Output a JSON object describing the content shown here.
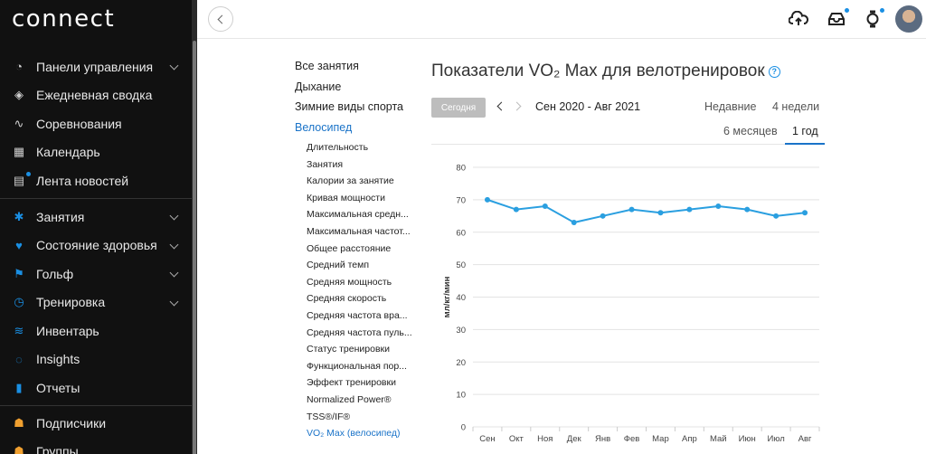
{
  "app": {
    "logo": "connect"
  },
  "sidebar": {
    "items": [
      {
        "label": "Панели управления",
        "icon": "dashboard-icon",
        "chevron": true
      },
      {
        "label": "Ежедневная сводка",
        "icon": "layers-icon",
        "chevron": false
      },
      {
        "label": "Соревнования",
        "icon": "pulse-icon",
        "chevron": false
      },
      {
        "label": "Календарь",
        "icon": "calendar-icon",
        "chevron": false
      },
      {
        "label": "Лента новостей",
        "icon": "newsfeed-icon",
        "chevron": false
      }
    ],
    "items2": [
      {
        "label": "Занятия",
        "icon": "activity-icon",
        "chevron": true
      },
      {
        "label": "Состояние здоровья",
        "icon": "heart-icon",
        "chevron": true
      },
      {
        "label": "Гольф",
        "icon": "golf-icon",
        "chevron": true
      },
      {
        "label": "Тренировка",
        "icon": "stopwatch-icon",
        "chevron": true
      },
      {
        "label": "Инвентарь",
        "icon": "shoe-icon",
        "chevron": false
      },
      {
        "label": "Insights",
        "icon": "lightbulb-icon",
        "chevron": false
      },
      {
        "label": "Отчеты",
        "icon": "bar-chart-icon",
        "chevron": false
      }
    ],
    "items3": [
      {
        "label": "Подписчики",
        "icon": "followers-icon",
        "chevron": false
      },
      {
        "label": "Группы",
        "icon": "groups-icon",
        "chevron": false
      }
    ]
  },
  "topbar": {
    "icons": [
      "upload-cloud-icon",
      "inbox-icon",
      "watch-icon"
    ],
    "accent": "#1a8fe3"
  },
  "subnav": {
    "categories": [
      "Все занятия",
      "Дыхание",
      "Зимние виды спорта",
      "Велосипед"
    ],
    "active_category": "Велосипед",
    "subitems": [
      "Длительность",
      "Занятия",
      "Калории за занятие",
      "Кривая мощности",
      "Максимальная средн...",
      "Максимальная частот...",
      "Общее расстояние",
      "Средний темп",
      "Средняя мощность",
      "Средняя скорость",
      "Средняя частота вра...",
      "Средняя частота пуль...",
      "Статус тренировки",
      "Функциональная пор...",
      "Эффект тренировки",
      "Normalized Power®",
      "TSS®/IF®",
      "VO₂ Max (велосипед)"
    ],
    "active_subitem": "VO₂ Max (велосипед)"
  },
  "content": {
    "title": "Показатели VO₂ Max для велотренировок",
    "today_button": "Сегодня",
    "date_range": "Сен 2020 - Авг 2021",
    "periods": {
      "recent": "Недавние",
      "four_weeks": "4 недели",
      "six_months": "6 месяцев",
      "one_year": "1 год"
    },
    "active_period": "1 год"
  },
  "chart_data": {
    "type": "line",
    "title": "Показатели VO₂ Max для велотренировок",
    "xlabel": "",
    "ylabel": "мл/кг/мин",
    "categories": [
      "Сен",
      "Окт",
      "Ноя",
      "Дек",
      "Янв",
      "Фев",
      "Мар",
      "Апр",
      "Май",
      "Июн",
      "Июл",
      "Авг"
    ],
    "values": [
      70,
      67,
      68,
      63,
      65,
      67,
      66,
      67,
      68,
      67,
      65,
      66
    ],
    "ylim": [
      0,
      80
    ],
    "yticks": [
      0,
      10,
      20,
      30,
      40,
      50,
      60,
      70,
      80
    ],
    "grid": true,
    "color": "#2a9fe0"
  }
}
